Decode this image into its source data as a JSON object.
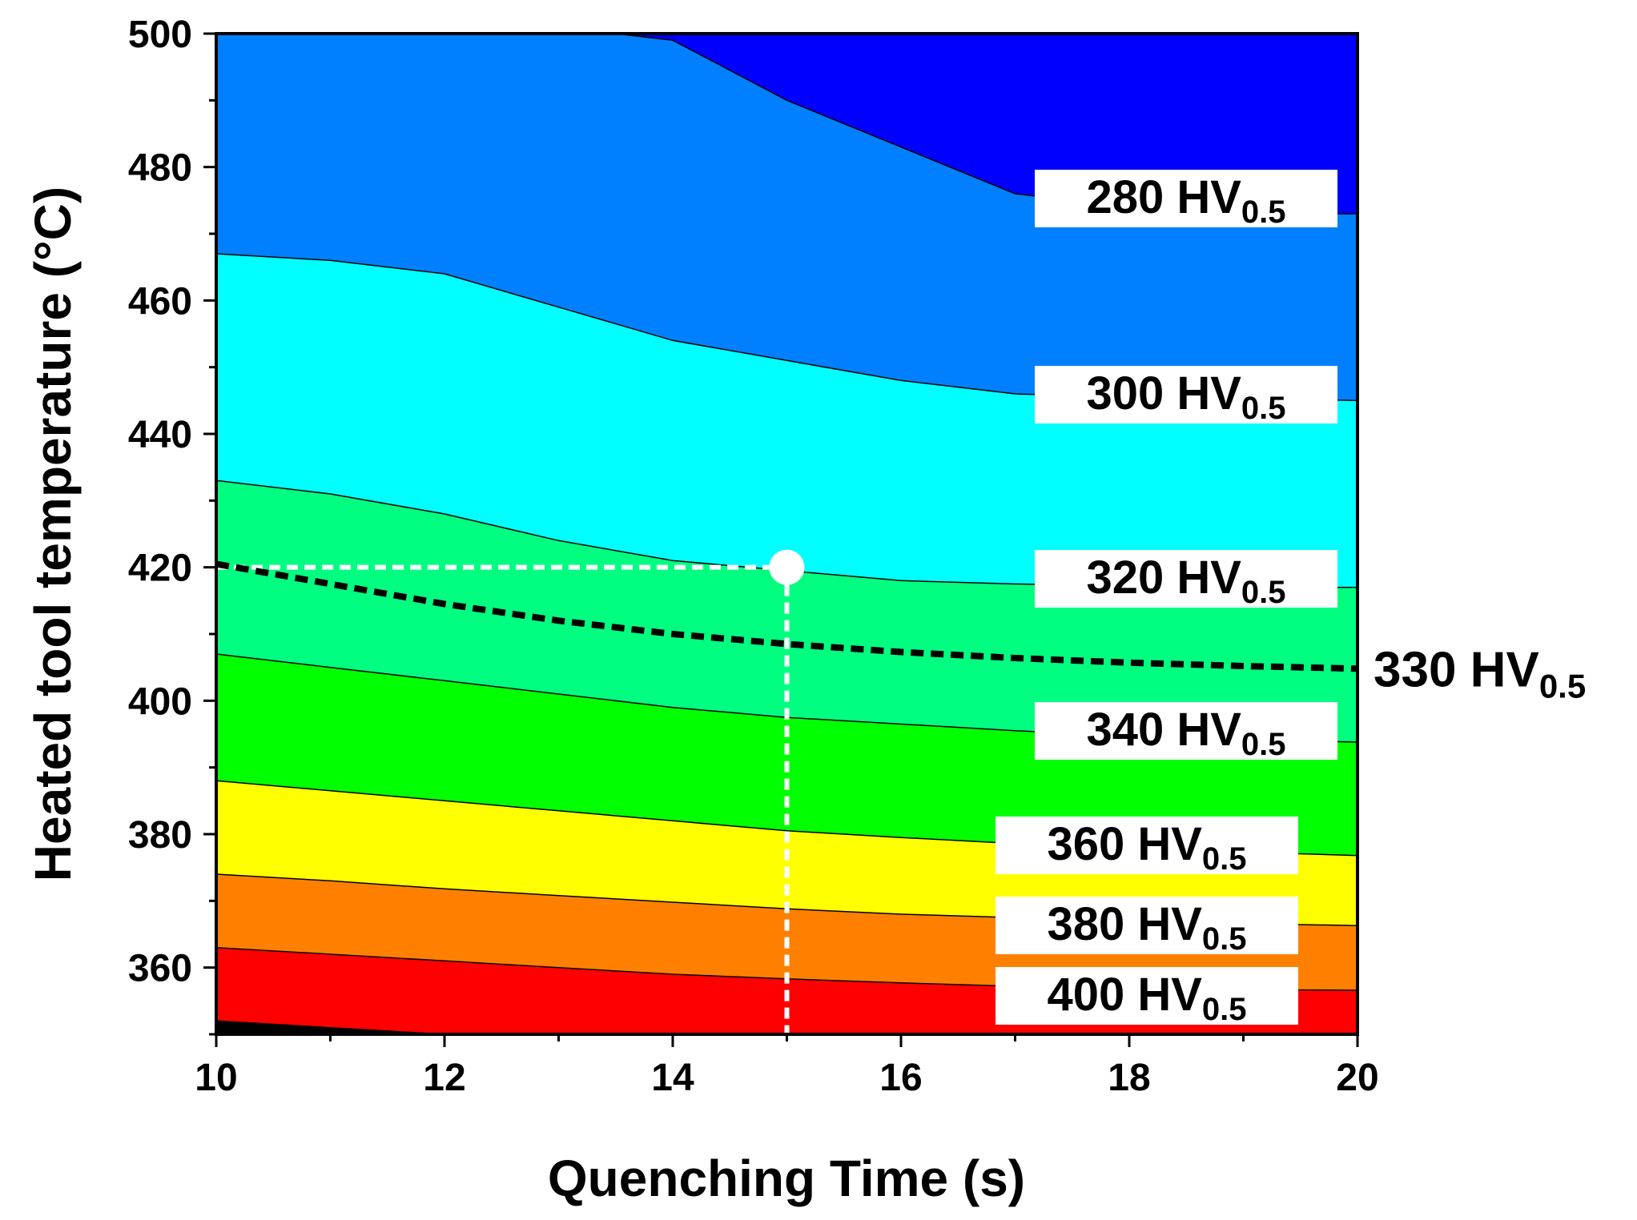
{
  "chart_data": {
    "type": "contour",
    "xlabel": "Quenching Time (s)",
    "ylabel": "Heated tool temperature (°C)",
    "xlim": [
      10,
      20
    ],
    "ylim": [
      350,
      500
    ],
    "x_ticks": [
      "10",
      "12",
      "14",
      "16",
      "18",
      "20"
    ],
    "y_ticks": [
      "360",
      "380",
      "400",
      "420",
      "440",
      "460",
      "480",
      "500"
    ],
    "x_tick_values": [
      10,
      12,
      14,
      16,
      18,
      20
    ],
    "y_tick_values": [
      360,
      380,
      400,
      420,
      440,
      460,
      480,
      500
    ],
    "unit_sub": "0.5",
    "contours": [
      {
        "level": 280,
        "label": "280 HV",
        "points": [
          [
            13.5,
            500
          ],
          [
            14,
            499
          ],
          [
            15,
            490
          ],
          [
            16,
            483
          ],
          [
            17,
            476
          ],
          [
            18,
            474
          ],
          [
            19,
            473
          ],
          [
            20,
            473
          ]
        ]
      },
      {
        "level": 300,
        "label": "300 HV",
        "points": [
          [
            10,
            467
          ],
          [
            11,
            466
          ],
          [
            12,
            464
          ],
          [
            13,
            459
          ],
          [
            14,
            454
          ],
          [
            15,
            451
          ],
          [
            16,
            448
          ],
          [
            17,
            446
          ],
          [
            18,
            445.5
          ],
          [
            19,
            445.3
          ],
          [
            20,
            445
          ]
        ]
      },
      {
        "level": 320,
        "label": "320 HV",
        "points": [
          [
            10,
            433
          ],
          [
            11,
            431
          ],
          [
            12,
            428
          ],
          [
            13,
            424
          ],
          [
            14,
            421
          ],
          [
            15,
            419.5
          ],
          [
            16,
            418
          ],
          [
            17,
            417.5
          ],
          [
            18,
            417.2
          ],
          [
            19,
            417
          ],
          [
            20,
            417
          ]
        ]
      },
      {
        "level": 340,
        "label": "340 HV",
        "points": [
          [
            10,
            407
          ],
          [
            11,
            405
          ],
          [
            12,
            403
          ],
          [
            13,
            401
          ],
          [
            14,
            399
          ],
          [
            15,
            397.5
          ],
          [
            16,
            396.5
          ],
          [
            17,
            395.5
          ],
          [
            18,
            394.7
          ],
          [
            19,
            394.2
          ],
          [
            20,
            393.8
          ]
        ]
      },
      {
        "level": 360,
        "label": "360 HV",
        "points": [
          [
            10,
            388
          ],
          [
            11,
            386.5
          ],
          [
            12,
            385
          ],
          [
            13,
            383.5
          ],
          [
            14,
            382
          ],
          [
            15,
            380.5
          ],
          [
            16,
            379.5
          ],
          [
            17,
            378.6
          ],
          [
            18,
            377.8
          ],
          [
            19,
            377.3
          ],
          [
            20,
            376.8
          ]
        ]
      },
      {
        "level": 380,
        "label": "380 HV",
        "points": [
          [
            10,
            374
          ],
          [
            11,
            373
          ],
          [
            12,
            371.8
          ],
          [
            13,
            370.8
          ],
          [
            14,
            369.8
          ],
          [
            15,
            368.8
          ],
          [
            16,
            368
          ],
          [
            17,
            367.5
          ],
          [
            18,
            367
          ],
          [
            19,
            366.6
          ],
          [
            20,
            366.3
          ]
        ]
      },
      {
        "level": 400,
        "label": "400 HV",
        "points": [
          [
            10,
            363
          ],
          [
            11,
            362
          ],
          [
            12,
            361
          ],
          [
            13,
            360
          ],
          [
            14,
            359
          ],
          [
            15,
            358.3
          ],
          [
            16,
            357.7
          ],
          [
            17,
            357.2
          ],
          [
            18,
            356.9
          ],
          [
            19,
            356.7
          ],
          [
            20,
            356.6
          ]
        ]
      },
      {
        "level": 420,
        "label": "",
        "points": [
          [
            10,
            352
          ],
          [
            11,
            351
          ],
          [
            12,
            350
          ]
        ]
      }
    ],
    "fill_colors": [
      "#0000ff",
      "#0080ff",
      "#00ffff",
      "#00ff80",
      "#00ff00",
      "#ffff00",
      "#ff8000",
      "#ff0000"
    ],
    "reference_line": {
      "level": 330,
      "label": "330 HV",
      "points": [
        [
          10,
          420.5
        ],
        [
          11,
          417.5
        ],
        [
          12,
          414.5
        ],
        [
          13,
          412
        ],
        [
          14,
          410
        ],
        [
          15,
          408.5
        ],
        [
          16,
          407.3
        ],
        [
          17,
          406.4
        ],
        [
          18,
          405.7
        ],
        [
          19,
          405.2
        ],
        [
          20,
          404.8
        ]
      ]
    },
    "marker": {
      "x": 15,
      "y": 420
    }
  }
}
